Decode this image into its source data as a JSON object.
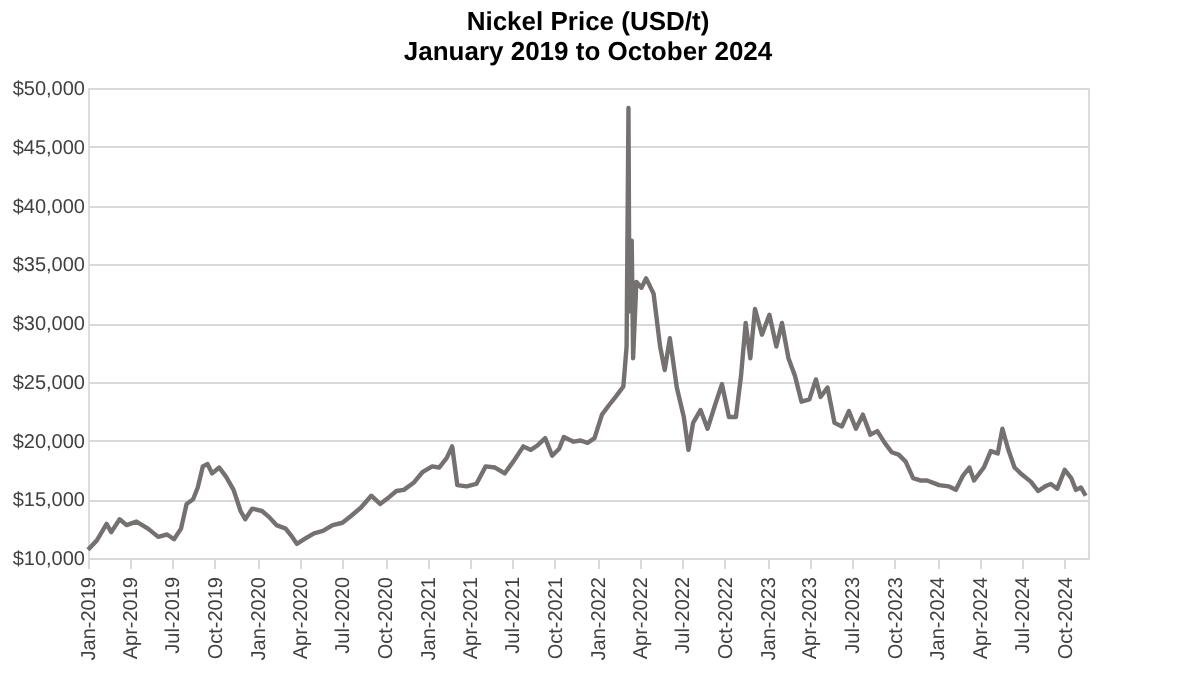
{
  "chart_data": {
    "type": "line",
    "title": "Nickel Price (USD/t)",
    "subtitle": "January 2019 to October 2024",
    "x": [
      "2019-01-01",
      "2019-01-20",
      "2019-02-10",
      "2019-02-20",
      "2019-03-10",
      "2019-03-25",
      "2019-04-15",
      "2019-05-10",
      "2019-06-01",
      "2019-06-20",
      "2019-07-05",
      "2019-07-20",
      "2019-08-01",
      "2019-08-15",
      "2019-08-25",
      "2019-09-05",
      "2019-09-15",
      "2019-09-25",
      "2019-10-10",
      "2019-10-25",
      "2019-11-10",
      "2019-11-25",
      "2019-12-05",
      "2019-12-20",
      "2020-01-10",
      "2020-01-25",
      "2020-02-10",
      "2020-03-01",
      "2020-03-15",
      "2020-03-25",
      "2020-04-10",
      "2020-05-01",
      "2020-05-20",
      "2020-06-10",
      "2020-07-01",
      "2020-07-20",
      "2020-08-10",
      "2020-09-01",
      "2020-09-20",
      "2020-10-10",
      "2020-10-25",
      "2020-11-10",
      "2020-12-01",
      "2020-12-20",
      "2021-01-10",
      "2021-01-25",
      "2021-02-10",
      "2021-02-22",
      "2021-03-05",
      "2021-03-25",
      "2021-04-15",
      "2021-05-05",
      "2021-05-25",
      "2021-06-15",
      "2021-07-05",
      "2021-07-25",
      "2021-08-10",
      "2021-08-25",
      "2021-09-10",
      "2021-09-25",
      "2021-10-10",
      "2021-10-20",
      "2021-11-10",
      "2021-11-25",
      "2021-12-10",
      "2021-12-25",
      "2022-01-10",
      "2022-01-25",
      "2022-02-10",
      "2022-02-25",
      "2022-03-04",
      "2022-03-08",
      "2022-03-10",
      "2022-03-15",
      "2022-03-18",
      "2022-03-25",
      "2022-04-05",
      "2022-04-15",
      "2022-05-01",
      "2022-05-15",
      "2022-05-25",
      "2022-06-05",
      "2022-06-20",
      "2022-07-05",
      "2022-07-15",
      "2022-07-25",
      "2022-08-10",
      "2022-08-25",
      "2022-09-10",
      "2022-09-25",
      "2022-10-10",
      "2022-10-25",
      "2022-11-05",
      "2022-11-15",
      "2022-11-25",
      "2022-12-05",
      "2022-12-20",
      "2023-01-05",
      "2023-01-20",
      "2023-02-01",
      "2023-02-15",
      "2023-03-01",
      "2023-03-15",
      "2023-04-01",
      "2023-04-15",
      "2023-04-25",
      "2023-05-10",
      "2023-05-25",
      "2023-06-10",
      "2023-06-25",
      "2023-07-10",
      "2023-07-25",
      "2023-08-10",
      "2023-08-25",
      "2023-09-10",
      "2023-09-25",
      "2023-10-10",
      "2023-10-25",
      "2023-11-10",
      "2023-11-25",
      "2023-12-10",
      "2024-01-05",
      "2024-01-25",
      "2024-02-10",
      "2024-02-25",
      "2024-03-10",
      "2024-03-20",
      "2024-04-10",
      "2024-04-25",
      "2024-05-10",
      "2024-05-20",
      "2024-06-01",
      "2024-06-15",
      "2024-07-01",
      "2024-07-20",
      "2024-08-05",
      "2024-08-20",
      "2024-09-01",
      "2024-09-15",
      "2024-10-01",
      "2024-10-15",
      "2024-10-25",
      "2024-11-05",
      "2024-11-15"
    ],
    "series": [
      {
        "color": "#767171",
        "values": [
          10700,
          11500,
          12900,
          12200,
          13300,
          12800,
          13100,
          12500,
          11800,
          12000,
          11600,
          12500,
          14600,
          15000,
          16000,
          17800,
          18000,
          17200,
          17700,
          16900,
          15800,
          14000,
          13300,
          14200,
          14000,
          13500,
          12800,
          12500,
          11800,
          11200,
          11600,
          12100,
          12300,
          12800,
          13000,
          13600,
          14300,
          15300,
          14600,
          15200,
          15700,
          15800,
          16400,
          17300,
          17800,
          17700,
          18500,
          19500,
          16200,
          16100,
          16300,
          17800,
          17700,
          17200,
          18300,
          19500,
          19200,
          19600,
          20200,
          18700,
          19300,
          20300,
          19900,
          20000,
          19800,
          20200,
          22200,
          23000,
          23800,
          24600,
          28000,
          48300,
          31000,
          37000,
          27000,
          33500,
          33000,
          33800,
          32500,
          28000,
          26000,
          28700,
          24500,
          22000,
          19200,
          21500,
          22600,
          21000,
          23000,
          24800,
          22000,
          22000,
          25500,
          30000,
          27000,
          31200,
          29000,
          30700,
          28000,
          30000,
          27000,
          25500,
          23300,
          23500,
          25200,
          23700,
          24500,
          21500,
          21200,
          22500,
          21000,
          22200,
          20500,
          20800,
          19800,
          19000,
          18800,
          18200,
          16800,
          16600,
          16600,
          16200,
          16100,
          15800,
          17000,
          17700,
          16600,
          17700,
          19100,
          18900,
          21000,
          19300,
          17700,
          17100,
          16500,
          15700,
          16100,
          16300,
          15900,
          17500,
          16800,
          15800,
          16000,
          15300
        ]
      }
    ],
    "xlim": [
      "2019-01-01",
      "2024-11-20"
    ],
    "xticks": [
      {
        "value": "2019-01-01",
        "label": "Jan-2019"
      },
      {
        "value": "2019-04-01",
        "label": "Apr-2019"
      },
      {
        "value": "2019-07-01",
        "label": "Jul-2019"
      },
      {
        "value": "2019-10-01",
        "label": "Oct-2019"
      },
      {
        "value": "2020-01-01",
        "label": "Jan-2020"
      },
      {
        "value": "2020-04-01",
        "label": "Apr-2020"
      },
      {
        "value": "2020-07-01",
        "label": "Jul-2020"
      },
      {
        "value": "2020-10-01",
        "label": "Oct-2020"
      },
      {
        "value": "2021-01-01",
        "label": "Jan-2021"
      },
      {
        "value": "2021-04-01",
        "label": "Apr-2021"
      },
      {
        "value": "2021-07-01",
        "label": "Jul-2021"
      },
      {
        "value": "2021-10-01",
        "label": "Oct-2021"
      },
      {
        "value": "2022-01-01",
        "label": "Jan-2022"
      },
      {
        "value": "2022-04-01",
        "label": "Apr-2022"
      },
      {
        "value": "2022-07-01",
        "label": "Jul-2022"
      },
      {
        "value": "2022-10-01",
        "label": "Oct-2022"
      },
      {
        "value": "2023-01-01",
        "label": "Jan-2023"
      },
      {
        "value": "2023-04-01",
        "label": "Apr-2023"
      },
      {
        "value": "2023-07-01",
        "label": "Jul-2023"
      },
      {
        "value": "2023-10-01",
        "label": "Oct-2023"
      },
      {
        "value": "2024-01-01",
        "label": "Jan-2024"
      },
      {
        "value": "2024-04-01",
        "label": "Apr-2024"
      },
      {
        "value": "2024-07-01",
        "label": "Jul-2024"
      },
      {
        "value": "2024-10-01",
        "label": "Oct-2024"
      }
    ],
    "ylim": [
      10000,
      50000
    ],
    "yticks": [
      {
        "value": 10000,
        "label": "$10,000"
      },
      {
        "value": 15000,
        "label": "$15,000"
      },
      {
        "value": 20000,
        "label": "$20,000"
      },
      {
        "value": 25000,
        "label": "$25,000"
      },
      {
        "value": 30000,
        "label": "$30,000"
      },
      {
        "value": 35000,
        "label": "$35,000"
      },
      {
        "value": 40000,
        "label": "$40,000"
      },
      {
        "value": 45000,
        "label": "$45,000"
      },
      {
        "value": 50000,
        "label": "$50,000"
      }
    ],
    "grid": "y",
    "legend": false,
    "marker": "none",
    "line_style": "solid"
  }
}
